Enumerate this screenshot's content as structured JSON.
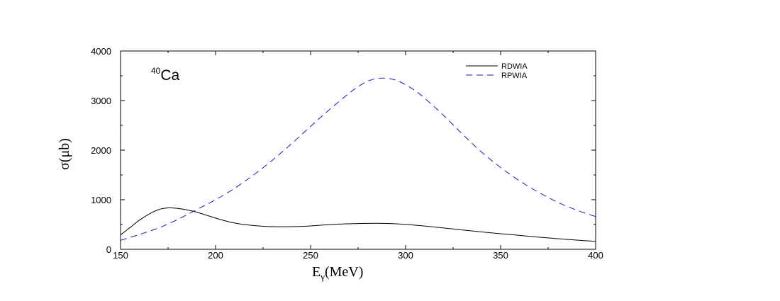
{
  "chart_data": {
    "type": "line",
    "title": "",
    "xlabel": {
      "main": "E",
      "sub": "γ",
      "rest": "(MeV)"
    },
    "ylabel": {
      "pre": "σ(",
      "greek": "μ",
      "post": "b)"
    },
    "annotation": {
      "sup": "40",
      "text": "Ca"
    },
    "xlim": [
      150,
      400
    ],
    "ylim": [
      0,
      4000
    ],
    "xticks": [
      150,
      200,
      250,
      300,
      350,
      400
    ],
    "yticks": [
      0,
      1000,
      2000,
      3000,
      4000
    ],
    "legend_position": "top-right",
    "grid": false,
    "series": [
      {
        "name": "RDWIA",
        "color": "#000000",
        "dash": "solid",
        "x": [
          150,
          155,
          160,
          165,
          170,
          175,
          180,
          185,
          190,
          195,
          200,
          205,
          210,
          215,
          220,
          225,
          230,
          235,
          240,
          245,
          250,
          255,
          260,
          265,
          270,
          275,
          280,
          285,
          290,
          295,
          300,
          310,
          320,
          330,
          340,
          350,
          360,
          370,
          380,
          390,
          400
        ],
        "y": [
          290,
          440,
          590,
          710,
          800,
          835,
          825,
          795,
          750,
          690,
          630,
          575,
          530,
          500,
          480,
          465,
          457,
          455,
          457,
          462,
          472,
          485,
          497,
          507,
          515,
          520,
          523,
          525,
          522,
          515,
          502,
          470,
          430,
          390,
          350,
          315,
          280,
          245,
          215,
          185,
          160
        ]
      },
      {
        "name": "RPWIA",
        "color": "#1a1acc",
        "dash": "dashed",
        "x": [
          150,
          160,
          170,
          180,
          190,
          200,
          210,
          220,
          230,
          240,
          250,
          260,
          270,
          275,
          280,
          285,
          290,
          295,
          300,
          305,
          310,
          320,
          330,
          340,
          350,
          360,
          370,
          380,
          390,
          400
        ],
        "y": [
          180,
          300,
          430,
          600,
          800,
          1000,
          1230,
          1500,
          1800,
          2130,
          2480,
          2820,
          3140,
          3280,
          3390,
          3445,
          3450,
          3410,
          3320,
          3200,
          3050,
          2700,
          2320,
          1960,
          1650,
          1380,
          1150,
          950,
          790,
          660
        ]
      }
    ]
  }
}
